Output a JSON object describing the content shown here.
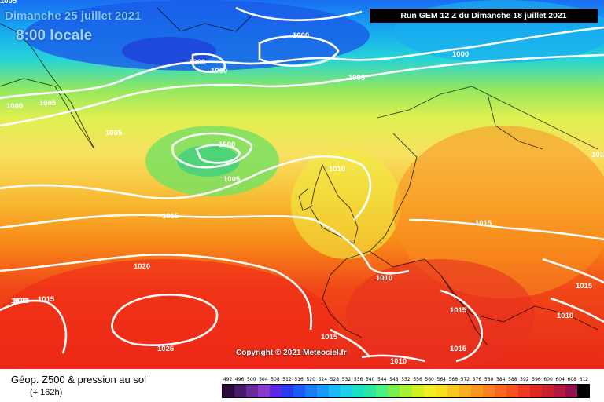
{
  "header": {
    "date_label": "Dimanche 25 juillet 2021",
    "time_label": "8:00 locale",
    "run_label": "Run GEM 12 Z du Dimanche 18 juillet 2021"
  },
  "copyright": "Copyright © 2021 Meteociel.fr",
  "footer": {
    "title": "Géop. Z500 & pression au sol",
    "subtitle": "(+ 162h)"
  },
  "legend": {
    "values": [
      "492",
      "496",
      "500",
      "504",
      "508",
      "512",
      "516",
      "520",
      "524",
      "528",
      "532",
      "536",
      "540",
      "544",
      "548",
      "552",
      "556",
      "560",
      "564",
      "568",
      "572",
      "576",
      "580",
      "584",
      "588",
      "592",
      "596",
      "600",
      "604",
      "608",
      "612"
    ],
    "colors": [
      "#2a0a3a",
      "#4a1a6a",
      "#6a2a9a",
      "#8a3ac8",
      "#5a2ae0",
      "#2a3af0",
      "#1a5af8",
      "#1a7af8",
      "#1a9af8",
      "#1abaf8",
      "#1ad0e8",
      "#1ae0c8",
      "#2ae8a0",
      "#4af080",
      "#7af050",
      "#a8f030",
      "#d0f020",
      "#f0f020",
      "#f8e020",
      "#f8c820",
      "#f8b020",
      "#f89820",
      "#f88020",
      "#f86820",
      "#f85020",
      "#f03820",
      "#e02820",
      "#c82030",
      "#b01840",
      "#901050",
      "#000000"
    ]
  },
  "isobars": [
    {
      "label": "1005"
    },
    {
      "label": "1000"
    },
    {
      "label": "1000"
    },
    {
      "label": "1000"
    },
    {
      "label": "1000"
    },
    {
      "label": "1005"
    },
    {
      "label": "1000"
    },
    {
      "label": "1005"
    },
    {
      "label": "1005"
    },
    {
      "label": "1000"
    },
    {
      "label": "1005"
    },
    {
      "label": "1010"
    },
    {
      "label": "1015"
    },
    {
      "label": "1015"
    },
    {
      "label": "1020"
    },
    {
      "label": "1010"
    },
    {
      "label": "1015"
    },
    {
      "label": "1025"
    },
    {
      "label": "1010"
    },
    {
      "label": "1015"
    },
    {
      "label": "1015"
    },
    {
      "label": "1010"
    },
    {
      "label": "1015"
    },
    {
      "label": "1015"
    },
    {
      "label": "1010"
    },
    {
      "label": "1010"
    },
    {
      "label": "101"
    }
  ]
}
